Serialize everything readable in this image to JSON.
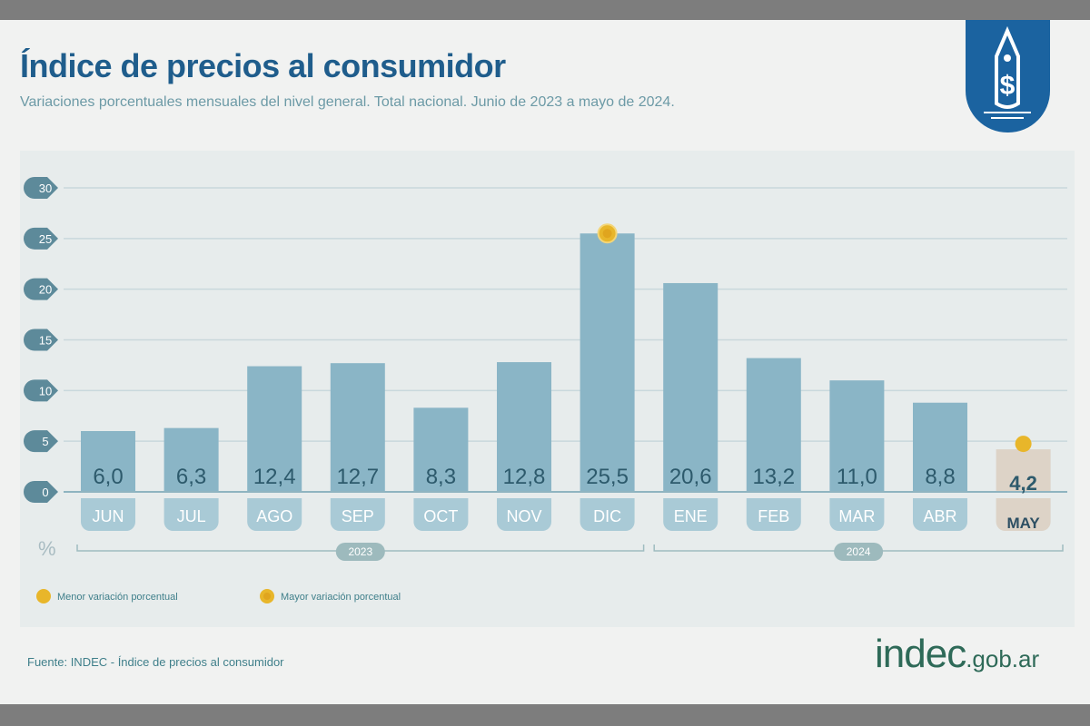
{
  "header": {
    "title": "Índice de precios al consumidor",
    "subtitle": "Variaciones porcentuales mensuales del nivel general. Total nacional. Junio de 2023 a mayo de 2024.",
    "logo_icon": "price-tag-dollar-icon"
  },
  "chart_data": {
    "type": "bar",
    "categories": [
      "JUN",
      "JUL",
      "AGO",
      "SEP",
      "OCT",
      "NOV",
      "DIC",
      "ENE",
      "FEB",
      "MAR",
      "ABR",
      "MAY"
    ],
    "values": [
      6.0,
      6.3,
      12.4,
      12.7,
      8.3,
      12.8,
      25.5,
      20.6,
      13.2,
      11.0,
      8.8,
      4.2
    ],
    "value_labels": [
      "6,0",
      "6,3",
      "12,4",
      "12,7",
      "8,3",
      "12,8",
      "25,5",
      "20,6",
      "13,2",
      "11,0",
      "8,8",
      "4,2"
    ],
    "ylabel": "%",
    "ylim": [
      0,
      30
    ],
    "yticks": [
      0,
      5,
      10,
      15,
      20,
      25,
      30
    ],
    "grid": true,
    "year_groups": [
      {
        "label": "2023",
        "from": "JUN",
        "to": "DIC"
      },
      {
        "label": "2024",
        "from": "ENE",
        "to": "MAY"
      }
    ],
    "highlight": {
      "min": "MAY",
      "max": "DIC"
    },
    "legend": [
      {
        "label": "Menor variación porcentual",
        "marker": "min"
      },
      {
        "label": "Mayor variación porcentual",
        "marker": "max"
      }
    ],
    "legend_position": "bottom-left",
    "colors": {
      "bar": "#8ab5c6",
      "bar_label": "#a9cad6",
      "latest_bar": "#ddd3c7",
      "marker": "#e8b62a",
      "axis_badge": "#5d8a9a",
      "value_text": "#2d5a6c"
    }
  },
  "footer": {
    "source": "Fuente: INDEC - Índice de precios al consumidor",
    "brand": "indec",
    "brand_suffix": ".gob.ar"
  }
}
